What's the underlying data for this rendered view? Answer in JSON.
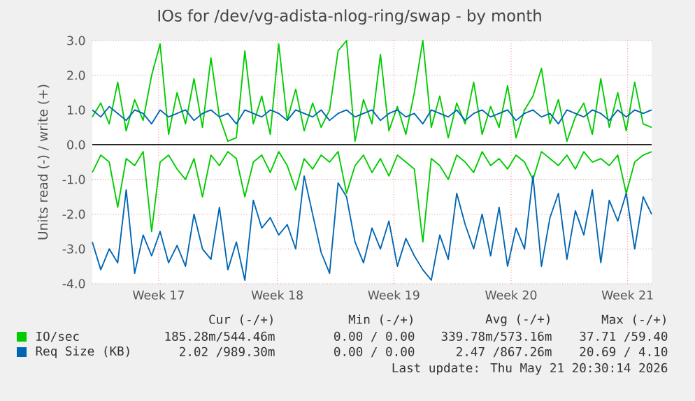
{
  "chart_data": {
    "type": "line",
    "title": "IOs for /dev/vg-adista-nlog-ring/swap - by month",
    "ylabel": "Units read (-) / write (+)",
    "x": [
      "2026-04-18T00:00",
      "2026-04-18T12:00",
      "2026-04-19T00:00",
      "2026-04-19T12:00",
      "2026-04-20T00:00",
      "2026-04-20T12:00",
      "2026-04-21T00:00",
      "2026-04-21T12:00",
      "2026-04-22T00:00",
      "2026-04-22T12:00",
      "2026-04-23T00:00",
      "2026-04-23T12:00",
      "2026-04-24T00:00",
      "2026-04-24T12:00",
      "2026-04-25T00:00",
      "2026-04-25T12:00",
      "2026-04-26T00:00",
      "2026-04-26T12:00",
      "2026-04-27T00:00",
      "2026-04-27T12:00",
      "2026-04-28T00:00",
      "2026-04-28T12:00",
      "2026-04-29T00:00",
      "2026-04-29T12:00",
      "2026-04-30T00:00",
      "2026-04-30T12:00",
      "2026-05-01T00:00",
      "2026-05-01T12:00",
      "2026-05-02T00:00",
      "2026-05-02T12:00",
      "2026-05-03T00:00",
      "2026-05-03T12:00",
      "2026-05-04T00:00",
      "2026-05-04T12:00",
      "2026-05-05T00:00",
      "2026-05-05T12:00",
      "2026-05-06T00:00",
      "2026-05-06T12:00",
      "2026-05-07T00:00",
      "2026-05-07T12:00",
      "2026-05-08T00:00",
      "2026-05-08T12:00",
      "2026-05-09T00:00",
      "2026-05-09T12:00",
      "2026-05-10T00:00",
      "2026-05-10T12:00",
      "2026-05-11T00:00",
      "2026-05-11T12:00",
      "2026-05-12T00:00",
      "2026-05-12T12:00",
      "2026-05-13T00:00",
      "2026-05-13T12:00",
      "2026-05-14T00:00",
      "2026-05-14T12:00",
      "2026-05-15T00:00",
      "2026-05-15T12:00",
      "2026-05-16T00:00",
      "2026-05-16T12:00",
      "2026-05-17T00:00",
      "2026-05-17T12:00",
      "2026-05-18T00:00",
      "2026-05-18T12:00",
      "2026-05-19T00:00",
      "2026-05-19T12:00",
      "2026-05-20T00:00",
      "2026-05-20T12:00",
      "2026-05-21T00:00"
    ],
    "xlim": [
      "2026-04-18T00:00",
      "2026-05-21T00:00"
    ],
    "xticks": [
      {
        "value": "2026-04-21T22:00",
        "label": "Week 17"
      },
      {
        "value": "2026-04-28T22:00",
        "label": "Week 18"
      },
      {
        "value": "2026-05-05T19:00",
        "label": "Week 19"
      },
      {
        "value": "2026-05-12T17:00",
        "label": "Week 20"
      },
      {
        "value": "2026-05-19T14:00",
        "label": "Week 21"
      }
    ],
    "ylim": [
      -4,
      3
    ],
    "yticks": [
      {
        "value": -4,
        "label": "-4.0"
      },
      {
        "value": -3,
        "label": "-3.0"
      },
      {
        "value": -2,
        "label": "-2.0"
      },
      {
        "value": -1,
        "label": "-1.0"
      },
      {
        "value": 0,
        "label": "0.0"
      },
      {
        "value": 1,
        "label": "1.0"
      },
      {
        "value": 2,
        "label": "2.0"
      },
      {
        "value": 3,
        "label": "3.0"
      }
    ],
    "grid": true,
    "legend": "bottom",
    "marker": "none",
    "line_style": "solid",
    "ref_lines": [
      {
        "axis": "y",
        "value": 0,
        "color": "#000000"
      }
    ],
    "series": [
      {
        "name": "IO/sec",
        "color": "#00cc00",
        "values": [
          0.8,
          1.2,
          0.6,
          1.8,
          0.4,
          1.3,
          0.7,
          2.0,
          2.9,
          0.3,
          1.5,
          0.6,
          1.9,
          0.5,
          2.5,
          0.8,
          0.1,
          0.2,
          2.7,
          0.6,
          1.4,
          0.3,
          2.9,
          0.7,
          1.6,
          0.4,
          1.2,
          0.5,
          1.0,
          2.7,
          3.0,
          0.1,
          1.3,
          0.6,
          2.6,
          0.4,
          1.1,
          0.3,
          1.5,
          3.0,
          0.5,
          1.4,
          0.2,
          1.2,
          0.6,
          1.8,
          0.3,
          1.1,
          0.5,
          1.7,
          0.2,
          1.0,
          1.4,
          2.2,
          0.6,
          1.3,
          0.1,
          0.8,
          1.2,
          0.3,
          1.9,
          0.5,
          1.5,
          0.4,
          1.8,
          0.6,
          0.5
        ]
      },
      {
        "color": "#00cc00",
        "values": [
          -0.8,
          -0.3,
          -0.5,
          -1.8,
          -0.4,
          -0.6,
          -0.2,
          -2.5,
          -0.5,
          -0.3,
          -0.7,
          -1.0,
          -0.4,
          -1.5,
          -0.3,
          -0.6,
          -0.2,
          -0.4,
          -1.5,
          -0.5,
          -0.3,
          -0.8,
          -0.2,
          -0.6,
          -1.3,
          -0.4,
          -0.7,
          -0.3,
          -0.5,
          -0.2,
          -1.4,
          -0.6,
          -0.3,
          -0.8,
          -0.4,
          -0.9,
          -0.3,
          -0.5,
          -0.7,
          -2.8,
          -0.4,
          -0.6,
          -1.0,
          -0.3,
          -0.5,
          -0.8,
          -0.2,
          -0.6,
          -0.4,
          -0.7,
          -0.3,
          -0.5,
          -1.0,
          -0.2,
          -0.4,
          -0.6,
          -0.3,
          -0.7,
          -0.2,
          -0.5,
          -0.4,
          -0.6,
          -0.3,
          -1.4,
          -0.5,
          -0.3,
          -0.2
        ]
      },
      {
        "name": "Req Size (KB)",
        "color": "#0066b3",
        "values": [
          1.0,
          0.8,
          1.1,
          0.9,
          0.7,
          1.0,
          0.9,
          0.6,
          1.0,
          0.8,
          0.9,
          1.0,
          0.7,
          0.9,
          1.0,
          0.8,
          0.9,
          0.6,
          1.0,
          0.9,
          0.8,
          1.0,
          0.9,
          0.7,
          1.0,
          0.9,
          0.8,
          1.0,
          0.7,
          0.9,
          1.0,
          0.8,
          0.9,
          1.0,
          0.7,
          0.9,
          1.0,
          0.8,
          0.9,
          0.6,
          1.0,
          0.9,
          0.8,
          1.0,
          0.7,
          0.9,
          1.0,
          0.8,
          0.9,
          1.0,
          0.7,
          0.9,
          1.0,
          0.8,
          0.9,
          0.6,
          1.0,
          0.9,
          0.8,
          1.0,
          0.9,
          0.7,
          1.0,
          0.8,
          1.0,
          0.9,
          1.0
        ]
      },
      {
        "color": "#0066b3",
        "values": [
          -2.8,
          -3.6,
          -3.0,
          -3.4,
          -1.3,
          -3.7,
          -2.6,
          -3.2,
          -2.5,
          -3.4,
          -2.9,
          -3.5,
          -2.0,
          -3.0,
          -3.3,
          -1.8,
          -3.6,
          -2.8,
          -3.9,
          -1.6,
          -2.4,
          -2.1,
          -2.6,
          -2.3,
          -3.0,
          -0.9,
          -2.0,
          -3.1,
          -3.7,
          -1.1,
          -1.5,
          -2.8,
          -3.4,
          -2.4,
          -3.0,
          -2.2,
          -3.5,
          -2.7,
          -3.2,
          -3.6,
          -3.9,
          -2.6,
          -3.3,
          -1.4,
          -2.3,
          -3.0,
          -2.0,
          -3.2,
          -1.8,
          -3.5,
          -2.4,
          -3.0,
          -0.9,
          -3.5,
          -2.1,
          -1.4,
          -3.3,
          -1.9,
          -2.6,
          -1.3,
          -3.4,
          -1.6,
          -2.2,
          -1.4,
          -3.0,
          -1.5,
          -2.0
        ]
      }
    ],
    "annotations": [
      "Cur (-/+)",
      "Min (-/+)",
      "Avg (-/+)",
      "Max (-/+)",
      "185.28m/544.46m",
      "0.00 / 0.00",
      "339.78m/573.16m",
      "37.71 /59.40",
      "2.02 /989.30m",
      "0.00 / 0.00",
      "2.47 /867.26m",
      "20.69 / 4.10",
      "Last update: Thu May 21 20:30:14 2026"
    ]
  }
}
